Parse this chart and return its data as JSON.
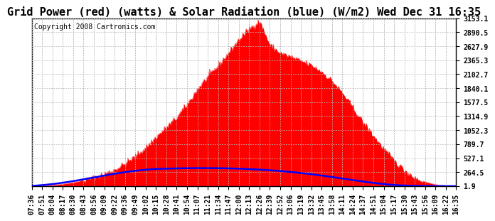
{
  "title": "Grid Power (red) (watts) & Solar Radiation (blue) (W/m2) Wed Dec 31 16:35",
  "copyright": "Copyright 2008 Cartronics.com",
  "bg_color": "#ffffff",
  "plot_bg_color": "#ffffff",
  "grid_color": "#bbbbbb",
  "y_min": 1.9,
  "y_max": 3153.1,
  "y_ticks": [
    1.9,
    264.5,
    527.1,
    789.7,
    1052.3,
    1314.9,
    1577.5,
    1840.1,
    2102.7,
    2365.3,
    2627.9,
    2890.5,
    3153.1
  ],
  "x_labels": [
    "07:36",
    "07:51",
    "08:04",
    "08:17",
    "08:30",
    "08:43",
    "08:56",
    "09:09",
    "09:22",
    "09:36",
    "09:49",
    "10:02",
    "10:15",
    "10:28",
    "10:41",
    "10:54",
    "11:07",
    "11:21",
    "11:34",
    "11:47",
    "12:00",
    "12:13",
    "12:26",
    "12:39",
    "12:52",
    "13:06",
    "13:19",
    "13:32",
    "13:45",
    "13:58",
    "14:11",
    "14:24",
    "14:37",
    "14:51",
    "15:04",
    "15:17",
    "15:30",
    "15:43",
    "15:56",
    "16:09",
    "16:22",
    "16:35"
  ],
  "red_color": "#ff0000",
  "blue_color": "#0000ff",
  "title_fontsize": 11,
  "axis_fontsize": 7,
  "copyright_fontsize": 7,
  "pv_values": [
    5,
    10,
    20,
    40,
    70,
    110,
    160,
    230,
    310,
    420,
    560,
    720,
    920,
    1100,
    1290,
    1530,
    1820,
    2050,
    2260,
    2500,
    2750,
    2950,
    3100,
    2650,
    2500,
    2430,
    2350,
    2270,
    2150,
    1980,
    1750,
    1480,
    1200,
    950,
    700,
    480,
    300,
    160,
    80,
    30,
    10,
    3
  ],
  "rad_values": [
    5,
    20,
    40,
    65,
    95,
    130,
    165,
    200,
    235,
    265,
    290,
    310,
    325,
    330,
    335,
    338,
    340,
    340,
    338,
    335,
    330,
    322,
    312,
    300,
    285,
    268,
    248,
    225,
    200,
    173,
    145,
    115,
    88,
    62,
    40,
    22,
    12,
    6,
    4,
    3,
    2,
    2
  ]
}
